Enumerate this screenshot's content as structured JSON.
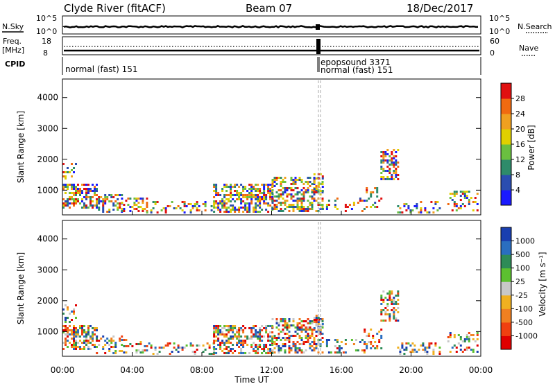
{
  "header": {
    "station": "Clyde River (fitACF)",
    "beam": "Beam 07",
    "date": "18/Dec/2017"
  },
  "top_panels": {
    "nsky_label": "N.Sky",
    "nsky_ticks": [
      "10^5",
      "10^0"
    ],
    "nsearch_label": "N.Search",
    "nsearch_ticks": [
      "10^5",
      "10^0"
    ],
    "freq_label_line1": "Freq.",
    "freq_label_line2": "[MHz]",
    "freq_ticks": [
      "18",
      "8"
    ],
    "nave_label": "Nave",
    "nave_ticks": [
      "60",
      "0"
    ],
    "cpid_label": "CPID",
    "cpid_segments": [
      {
        "text": "normal (fast) 151"
      },
      {
        "text": "epopsound 3371"
      },
      {
        "text": "normal (fast) 151"
      }
    ]
  },
  "chart_data": [
    {
      "type": "heatmap",
      "title": "",
      "ylabel": "Slant Range [km]",
      "ylim": [
        200,
        4600
      ],
      "yticks": [
        1000,
        2000,
        3000,
        4000
      ],
      "colorbar": {
        "label": "Power [dB]",
        "ticks": [
          "4",
          "8",
          "12",
          "16",
          "20",
          "24",
          "28"
        ],
        "colors": [
          "#1a1aff",
          "#2a4db0",
          "#2e8b6a",
          "#6abf40",
          "#e0d000",
          "#f0a020",
          "#f06a10",
          "#e01010"
        ]
      }
    },
    {
      "type": "heatmap",
      "title": "",
      "xlabel": "Time UT",
      "ylabel": "Slant Range [km]",
      "ylim": [
        200,
        4600
      ],
      "yticks": [
        1000,
        2000,
        3000,
        4000
      ],
      "xticks": [
        "00:00",
        "04:00",
        "08:00",
        "12:00",
        "16:00",
        "20:00",
        "00:00"
      ],
      "colorbar": {
        "label": "Velocity [m s⁻¹]",
        "ticks": [
          "1000",
          "500",
          "100",
          "25",
          "-25",
          "-100",
          "-500",
          "-1000"
        ],
        "colors": [
          "#1a3fb0",
          "#2a6ec0",
          "#2e8b57",
          "#5cc030",
          "#c8c8c8",
          "#f0b020",
          "#f08020",
          "#f04010",
          "#e00000"
        ]
      }
    }
  ]
}
